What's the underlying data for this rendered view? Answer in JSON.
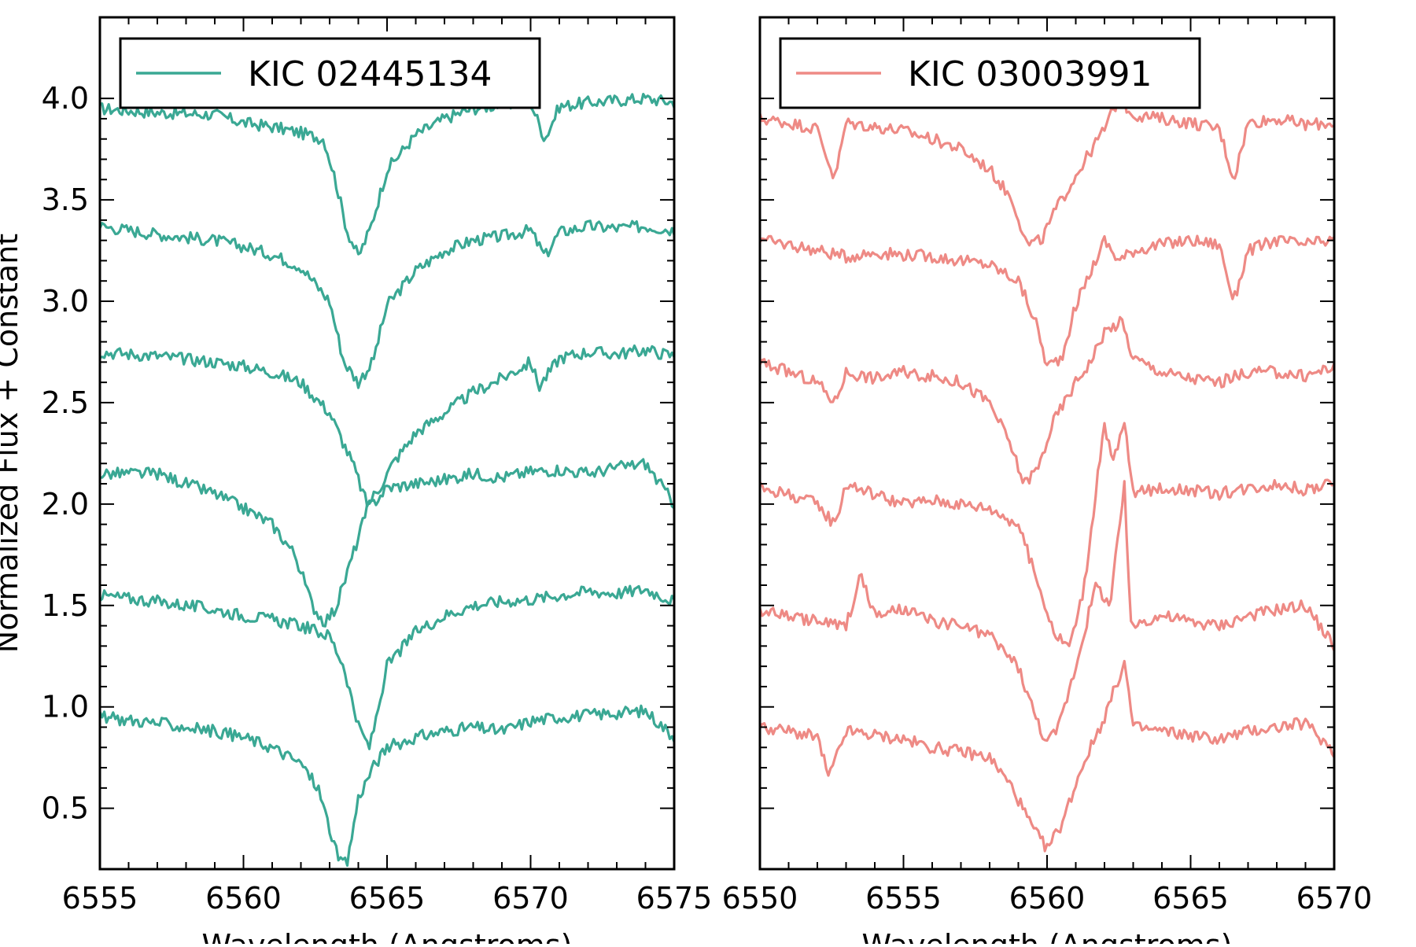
{
  "chart_data": [
    {
      "type": "line",
      "panel": "left",
      "xlabel": "Wavelength (Angstroms)",
      "ylabel": "Normalized Flux + Constant",
      "xlim": [
        6555,
        6575
      ],
      "ylim": [
        0.2,
        4.4
      ],
      "xticks": [
        6555,
        6560,
        6565,
        6570,
        6575
      ],
      "yticks": [
        0.5,
        1.0,
        1.5,
        2.0,
        2.5,
        3.0,
        3.5,
        4.0
      ],
      "ytick_labels": [
        "0.5",
        "1.0",
        "1.5",
        "2.0",
        "2.5",
        "3.0",
        "3.5",
        "4.0"
      ],
      "legend": {
        "label": "KIC 02445134",
        "position": "upper-left"
      },
      "color": "#3aa894",
      "grid": false,
      "series": [
        {
          "offset": 4.0,
          "x": [
            6555,
            6557,
            6559,
            6560,
            6561,
            6562,
            6562.8,
            6563.2,
            6563.6,
            6564,
            6564.4,
            6565,
            6566,
            6567,
            6568,
            6569,
            6570,
            6570.5,
            6571,
            6572,
            6573,
            6574,
            6575
          ],
          "y": [
            3.95,
            3.93,
            3.92,
            3.88,
            3.86,
            3.83,
            3.8,
            3.6,
            3.35,
            3.22,
            3.35,
            3.65,
            3.82,
            3.9,
            3.95,
            3.97,
            3.98,
            3.8,
            3.96,
            3.98,
            3.99,
            4.0,
            3.98
          ]
        },
        {
          "offset": 3.35,
          "x": [
            6555,
            6557,
            6559,
            6560,
            6561,
            6562,
            6563,
            6563.5,
            6564,
            6564.5,
            6565,
            6566,
            6567,
            6568,
            6569,
            6570,
            6570.5,
            6571,
            6572,
            6573,
            6574,
            6575
          ],
          "y": [
            3.37,
            3.33,
            3.3,
            3.27,
            3.23,
            3.17,
            3.0,
            2.7,
            2.6,
            2.7,
            2.98,
            3.15,
            3.25,
            3.3,
            3.32,
            3.35,
            3.22,
            3.34,
            3.37,
            3.36,
            3.37,
            3.35
          ]
        },
        {
          "offset": 2.75,
          "x": [
            6555,
            6557,
            6559,
            6560,
            6561,
            6562,
            6563,
            6563.8,
            6564.3,
            6564.7,
            6565.2,
            6566,
            6567,
            6568,
            6569,
            6570,
            6570.3,
            6571,
            6572,
            6573,
            6574,
            6575
          ],
          "y": [
            2.75,
            2.73,
            2.7,
            2.68,
            2.65,
            2.6,
            2.45,
            2.2,
            2.0,
            2.07,
            2.2,
            2.35,
            2.45,
            2.55,
            2.62,
            2.7,
            2.58,
            2.72,
            2.75,
            2.74,
            2.76,
            2.73
          ]
        },
        {
          "offset": 2.12,
          "x": [
            6555,
            6557,
            6558,
            6559,
            6560,
            6561,
            6561.8,
            6562.4,
            6562.8,
            6563.2,
            6563.7,
            6564.3,
            6565,
            6566,
            6567,
            6568,
            6569,
            6570,
            6571,
            6572,
            6573,
            6574,
            6575
          ],
          "y": [
            2.15,
            2.15,
            2.1,
            2.05,
            1.98,
            1.9,
            1.75,
            1.5,
            1.42,
            1.48,
            1.7,
            1.97,
            2.08,
            2.1,
            2.12,
            2.15,
            2.13,
            2.16,
            2.17,
            2.15,
            2.18,
            2.2,
            2.0
          ]
        },
        {
          "offset": 1.55,
          "x": [
            6555,
            6557,
            6559,
            6560,
            6561,
            6562,
            6563,
            6563.5,
            6564,
            6564.4,
            6565,
            6566,
            6567,
            6568,
            6569,
            6570,
            6571,
            6572,
            6573,
            6574,
            6575
          ],
          "y": [
            1.55,
            1.52,
            1.48,
            1.45,
            1.43,
            1.4,
            1.35,
            1.2,
            0.9,
            0.8,
            1.2,
            1.37,
            1.45,
            1.5,
            1.52,
            1.53,
            1.55,
            1.57,
            1.56,
            1.58,
            1.52
          ]
        },
        {
          "offset": 0.95,
          "x": [
            6555,
            6557,
            6559,
            6560,
            6561,
            6562,
            6562.6,
            6563,
            6563.3,
            6563.6,
            6564,
            6564.5,
            6565,
            6566,
            6567,
            6568,
            6569,
            6570,
            6571,
            6572,
            6573,
            6574,
            6575
          ],
          "y": [
            0.95,
            0.92,
            0.88,
            0.85,
            0.8,
            0.72,
            0.6,
            0.4,
            0.25,
            0.22,
            0.55,
            0.7,
            0.8,
            0.85,
            0.88,
            0.9,
            0.88,
            0.93,
            0.95,
            0.96,
            0.97,
            0.98,
            0.85
          ]
        }
      ]
    },
    {
      "type": "line",
      "panel": "right",
      "xlabel": "Wavelength (Angstroms)",
      "xlim": [
        6550,
        6570
      ],
      "ylim": [
        0.2,
        4.4
      ],
      "xticks": [
        6550,
        6555,
        6560,
        6565,
        6570
      ],
      "legend": {
        "label": "KIC 03003991",
        "position": "upper-left"
      },
      "color": "#ee8a85",
      "grid": false,
      "series": [
        {
          "offset": 3.9,
          "x": [
            6550,
            6551,
            6552,
            6552.6,
            6553,
            6554,
            6555,
            6556,
            6557,
            6558,
            6558.8,
            6559.3,
            6559.8,
            6560.3,
            6561,
            6562,
            6562.5,
            6563,
            6564,
            6565,
            6566,
            6566.5,
            6567,
            6568,
            6569,
            6570
          ],
          "y": [
            3.9,
            3.88,
            3.85,
            3.6,
            3.88,
            3.86,
            3.84,
            3.8,
            3.75,
            3.65,
            3.5,
            3.28,
            3.3,
            3.45,
            3.62,
            3.85,
            4.0,
            3.92,
            3.9,
            3.88,
            3.85,
            3.6,
            3.88,
            3.9,
            3.87,
            3.88
          ]
        },
        {
          "offset": 3.3,
          "x": [
            6550,
            6551,
            6552,
            6553,
            6554,
            6555,
            6556,
            6557,
            6558,
            6559,
            6559.6,
            6560,
            6560.5,
            6561,
            6562,
            6562.5,
            6563,
            6564,
            6565,
            6566,
            6566.5,
            6567,
            6568,
            6569,
            6570
          ],
          "y": [
            3.3,
            3.28,
            3.25,
            3.22,
            3.24,
            3.23,
            3.22,
            3.2,
            3.18,
            3.1,
            2.9,
            2.68,
            2.72,
            2.98,
            3.3,
            3.2,
            3.25,
            3.28,
            3.3,
            3.28,
            3.0,
            3.25,
            3.3,
            3.28,
            3.3
          ]
        },
        {
          "offset": 2.7,
          "x": [
            6550,
            6551,
            6552,
            6552.6,
            6553,
            6554,
            6555,
            6556,
            6557,
            6558,
            6558.7,
            6559.2,
            6559.7,
            6560.2,
            6561,
            6561.5,
            6562,
            6562.6,
            6563,
            6564,
            6565,
            6566,
            6567,
            6568,
            6569,
            6570
          ],
          "y": [
            2.7,
            2.65,
            2.6,
            2.5,
            2.65,
            2.62,
            2.65,
            2.63,
            2.6,
            2.5,
            2.3,
            2.1,
            2.18,
            2.4,
            2.6,
            2.7,
            2.85,
            2.9,
            2.72,
            2.65,
            2.62,
            2.6,
            2.65,
            2.65,
            2.63,
            2.68
          ]
        },
        {
          "offset": 2.08,
          "x": [
            6550,
            6551,
            6552,
            6552.6,
            6553,
            6554,
            6555,
            6556,
            6557,
            6558,
            6559,
            6559.7,
            6560.3,
            6560.8,
            6561.3,
            6562,
            6562.3,
            6562.7,
            6563,
            6564,
            6565,
            6566,
            6567,
            6568,
            6569,
            6570
          ],
          "y": [
            2.08,
            2.05,
            2.0,
            1.9,
            2.1,
            2.05,
            2.0,
            2.02,
            2.0,
            1.98,
            1.9,
            1.6,
            1.35,
            1.3,
            1.6,
            2.4,
            2.2,
            2.4,
            2.05,
            2.08,
            2.07,
            2.05,
            2.08,
            2.1,
            2.07,
            2.1
          ]
        },
        {
          "offset": 1.48,
          "x": [
            6550,
            6551,
            6552,
            6553,
            6553.5,
            6554,
            6555,
            6556,
            6557,
            6558,
            6559,
            6559.6,
            6560,
            6560.4,
            6561,
            6561.7,
            6562.2,
            6562.7,
            6562.9,
            6563.3,
            6564,
            6565,
            6566,
            6567,
            6568,
            6569,
            6570
          ],
          "y": [
            1.48,
            1.45,
            1.42,
            1.4,
            1.65,
            1.45,
            1.48,
            1.42,
            1.4,
            1.35,
            1.2,
            0.95,
            0.82,
            0.9,
            1.2,
            1.6,
            1.5,
            2.1,
            1.4,
            1.42,
            1.45,
            1.42,
            1.4,
            1.45,
            1.48,
            1.5,
            1.3
          ]
        },
        {
          "offset": 0.9,
          "x": [
            6550,
            6551,
            6552,
            6552.4,
            6553,
            6554,
            6555,
            6556,
            6557,
            6558,
            6558.8,
            6559.5,
            6560,
            6560.5,
            6561.2,
            6562,
            6562.7,
            6563,
            6564,
            6565,
            6566,
            6567,
            6568,
            6569,
            6570
          ],
          "y": [
            0.9,
            0.88,
            0.85,
            0.65,
            0.88,
            0.86,
            0.84,
            0.8,
            0.78,
            0.75,
            0.6,
            0.4,
            0.3,
            0.42,
            0.7,
            0.95,
            1.22,
            0.9,
            0.88,
            0.86,
            0.84,
            0.88,
            0.9,
            0.92,
            0.78
          ]
        }
      ]
    }
  ]
}
